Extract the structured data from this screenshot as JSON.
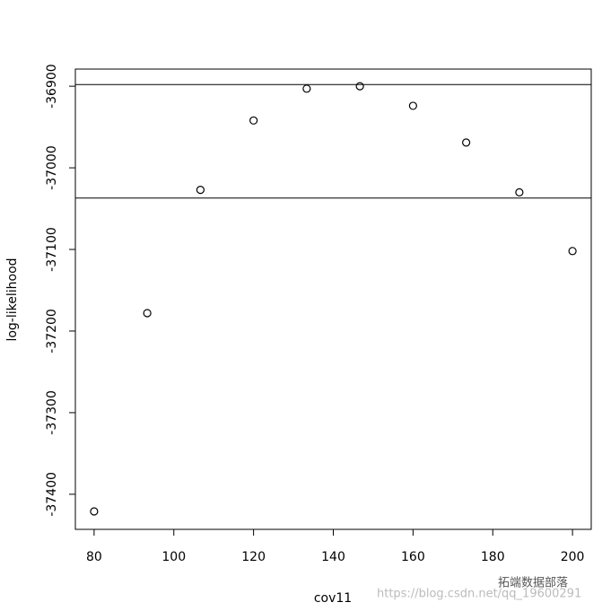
{
  "chart_data": {
    "type": "scatter",
    "x_label": "cov11",
    "y_label": "log-likelihood",
    "x": [
      80,
      93.33,
      106.67,
      120,
      133.33,
      146.67,
      160,
      173.33,
      186.67,
      200
    ],
    "values": [
      -37421,
      -37178,
      -37027,
      -36942,
      -36903,
      -36900,
      -36924,
      -36969,
      -37030,
      -37102
    ],
    "hlines": [
      -36898,
      -37037
    ],
    "xlim": [
      75.3,
      204.7
    ],
    "ylim": [
      -37443,
      -36879
    ],
    "xticks": [
      80,
      100,
      120,
      140,
      160,
      180,
      200
    ],
    "yticks": [
      -36900,
      -37000,
      -37100,
      -37200,
      -37300,
      -37400
    ],
    "color": "#000000"
  },
  "watermark": {
    "url": "https://blog.csdn.net/qq_19600291",
    "brand": "拓端数据部落"
  }
}
